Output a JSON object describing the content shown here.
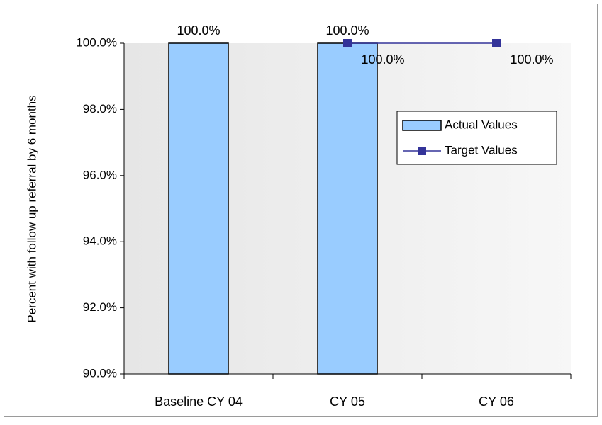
{
  "chart_data": {
    "type": "bar",
    "y_label": "Percent with follow up referral by 6 months",
    "categories": [
      "Baseline CY 04",
      "CY 05",
      "CY 06"
    ],
    "series": [
      {
        "name": "Actual Values",
        "type": "bar",
        "color": "#99ccff",
        "values": [
          100,
          100,
          null
        ],
        "value_labels": [
          "100.0%",
          "100.0%",
          null
        ]
      },
      {
        "name": "Target Values",
        "type": "line",
        "color": "#333399",
        "values": [
          null,
          100,
          100
        ],
        "value_labels": [
          null,
          "100.0%",
          "100.0%"
        ]
      }
    ],
    "ylim": [
      90,
      100
    ],
    "yticks": [
      {
        "value": 90,
        "label": "90.0%"
      },
      {
        "value": 92,
        "label": "92.0%"
      },
      {
        "value": 94,
        "label": "94.0%"
      },
      {
        "value": 96,
        "label": "96.0%"
      },
      {
        "value": 98,
        "label": "98.0%"
      },
      {
        "value": 100,
        "label": "100.0%"
      }
    ],
    "grid": false,
    "legend": "right"
  }
}
